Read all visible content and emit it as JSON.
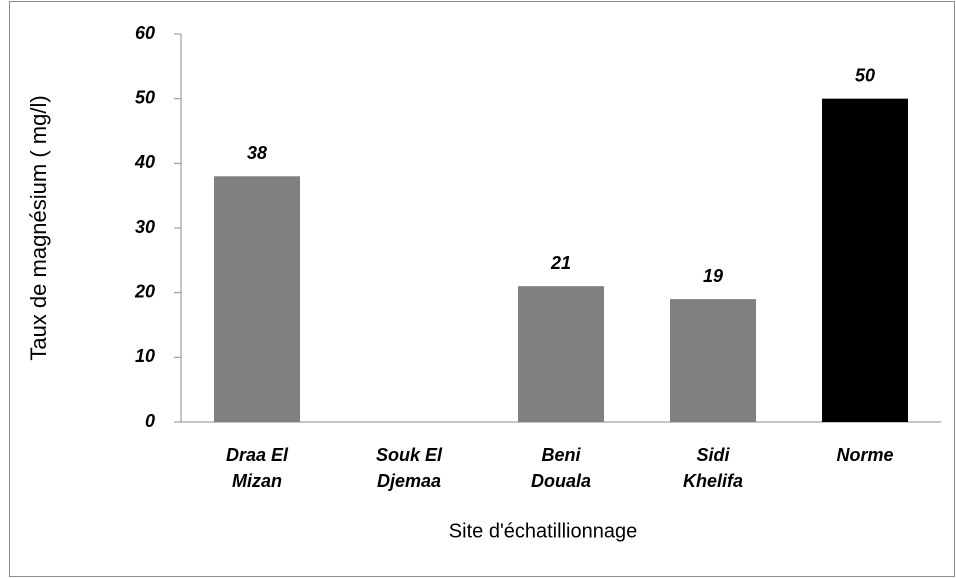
{
  "chart_data": {
    "type": "bar",
    "xlabel": "Site d'échatillionnage",
    "ylabel": "Taux de magnésium ( mg/l)",
    "categories": [
      "Draa El Mizan",
      "Souk El Djemaa",
      "Beni Douala",
      "Sidi Khelifa",
      "Norme"
    ],
    "values": [
      38,
      null,
      21,
      19,
      50
    ],
    "colors": [
      "#808080",
      "#808080",
      "#808080",
      "#808080",
      "#000000"
    ],
    "ylim": [
      0,
      60
    ],
    "yticks": [
      0,
      10,
      20,
      30,
      40,
      50,
      60
    ],
    "grid": false
  }
}
